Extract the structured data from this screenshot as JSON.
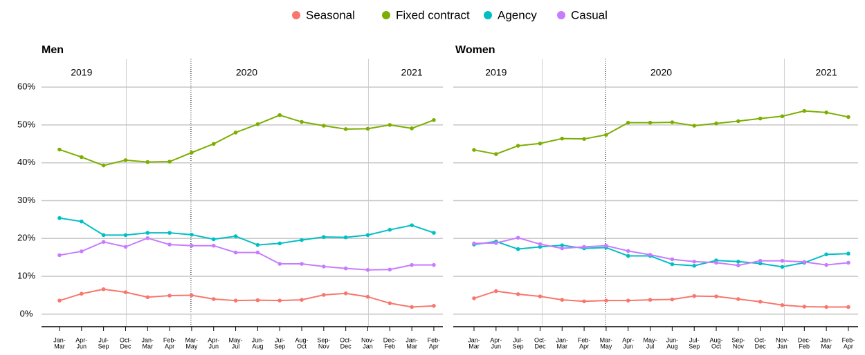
{
  "chart_data": [
    {
      "type": "line",
      "title": "Men",
      "years": [
        "2019",
        "2020",
        "2021"
      ],
      "categories": [
        [
          "Jan-",
          "Mar"
        ],
        [
          "Apr-",
          "Jun"
        ],
        [
          "Jul-",
          "Sep"
        ],
        [
          "Oct-",
          "Dec"
        ],
        [
          "Jan-",
          "Mar"
        ],
        [
          "Feb-",
          "Apr"
        ],
        [
          "Mar-",
          "May"
        ],
        [
          "Apr-",
          "Jun"
        ],
        [
          "May-",
          "Jul"
        ],
        [
          "Jun-",
          "Aug"
        ],
        [
          "Jul-",
          "Sep"
        ],
        [
          "Aug-",
          "Oct"
        ],
        [
          "Sep-",
          "Nov"
        ],
        [
          "Oct-",
          "Dec"
        ],
        [
          "Nov-",
          "Jan"
        ],
        [
          "Dec-",
          "Feb"
        ],
        [
          "Jan-",
          "Mar"
        ],
        [
          "Feb-",
          "Apr"
        ]
      ],
      "series": [
        {
          "name": "Seasonal",
          "color": "#f8766d",
          "values": [
            3.6,
            5.4,
            6.6,
            5.8,
            4.5,
            4.9,
            5,
            4,
            3.6,
            3.7,
            3.6,
            3.8,
            5.1,
            5.5,
            4.6,
            2.9,
            1.9,
            2.2
          ]
        },
        {
          "name": "Fixed contract",
          "color": "#7cae00",
          "values": [
            43.5,
            41.5,
            39.3,
            40.7,
            40.2,
            40.3,
            42.7,
            45,
            48,
            50.2,
            52.6,
            50.8,
            49.8,
            48.9,
            49,
            50,
            49.1,
            51.3
          ]
        },
        {
          "name": "Agency",
          "color": "#00bfc4",
          "values": [
            25.4,
            24.5,
            20.9,
            20.9,
            21.5,
            21.5,
            21,
            19.8,
            20.6,
            18.3,
            18.7,
            19.6,
            20.4,
            20.3,
            20.9,
            22.3,
            23.5,
            21.5
          ]
        },
        {
          "name": "Casual",
          "color": "#c77cff",
          "values": [
            15.6,
            16.6,
            19.1,
            17.8,
            20.1,
            18.4,
            18.1,
            18.1,
            16.3,
            16.3,
            13.3,
            13.3,
            12.6,
            12.1,
            11.7,
            11.8,
            13,
            13
          ]
        }
      ],
      "ylim": [
        -3.3,
        67.5
      ],
      "yticks": [
        {
          "value": 0,
          "label": "0%"
        },
        {
          "value": 10,
          "label": "10%"
        },
        {
          "value": 20,
          "label": "20%"
        },
        {
          "value": 30,
          "label": "30%"
        },
        {
          "value": 40,
          "label": "40%"
        },
        {
          "value": 50,
          "label": "50%"
        },
        {
          "value": 60,
          "label": "60%"
        }
      ],
      "grid": true
    },
    {
      "type": "line",
      "title": "Women",
      "years": [
        "2019",
        "2020",
        "2021"
      ],
      "categories": [
        [
          "Jan-",
          "Mar"
        ],
        [
          "Apr-",
          "Jun"
        ],
        [
          "Jul-",
          "Sep"
        ],
        [
          "Oct-",
          "Dec"
        ],
        [
          "Jan-",
          "Mar"
        ],
        [
          "Feb-",
          "Apr"
        ],
        [
          "Mar-",
          "May"
        ],
        [
          "Apr-",
          "Jun"
        ],
        [
          "May-",
          "Jul"
        ],
        [
          "Jun-",
          "Aug"
        ],
        [
          "Jul-",
          "Sep"
        ],
        [
          "Aug-",
          "Oct"
        ],
        [
          "Sep-",
          "Nov"
        ],
        [
          "Oct-",
          "Dec"
        ],
        [
          "Nov-",
          "Jan"
        ],
        [
          "Dec-",
          "Feb"
        ],
        [
          "Jan-",
          "Mar"
        ],
        [
          "Feb-",
          "Apr"
        ]
      ],
      "series": [
        {
          "name": "Seasonal",
          "color": "#f8766d",
          "values": [
            4.2,
            6.1,
            5.3,
            4.7,
            3.8,
            3.4,
            3.6,
            3.6,
            3.8,
            3.9,
            4.8,
            4.7,
            4,
            3.3,
            2.4,
            2,
            1.9,
            1.9
          ]
        },
        {
          "name": "Fixed contract",
          "color": "#7cae00",
          "values": [
            43.4,
            42.3,
            44.5,
            45.1,
            46.4,
            46.3,
            47.4,
            50.6,
            50.6,
            50.7,
            49.8,
            50.4,
            51,
            51.7,
            52.3,
            53.7,
            53.3,
            52.1
          ]
        },
        {
          "name": "Agency",
          "color": "#00bfc4",
          "values": [
            18.4,
            19.2,
            17.2,
            17.8,
            18.2,
            17.4,
            17.6,
            15.4,
            15.4,
            13.2,
            12.8,
            14.2,
            13.9,
            13.4,
            12.5,
            13.6,
            15.8,
            16
          ]
        },
        {
          "name": "Casual",
          "color": "#c77cff",
          "values": [
            18.7,
            18.8,
            20.2,
            18.5,
            17.4,
            17.8,
            18.1,
            16.7,
            15.7,
            14.5,
            13.9,
            13.6,
            12.9,
            14.1,
            14.1,
            13.8,
            13,
            13.6
          ]
        }
      ],
      "ylim": [
        -3.3,
        67.5
      ],
      "yticks": [
        {
          "value": 0,
          "label": "0%"
        },
        {
          "value": 10,
          "label": "10%"
        },
        {
          "value": 20,
          "label": "20%"
        },
        {
          "value": 30,
          "label": "30%"
        },
        {
          "value": 40,
          "label": "40%"
        },
        {
          "value": 50,
          "label": "50%"
        },
        {
          "value": 60,
          "label": "60%"
        }
      ],
      "grid": true
    }
  ]
}
